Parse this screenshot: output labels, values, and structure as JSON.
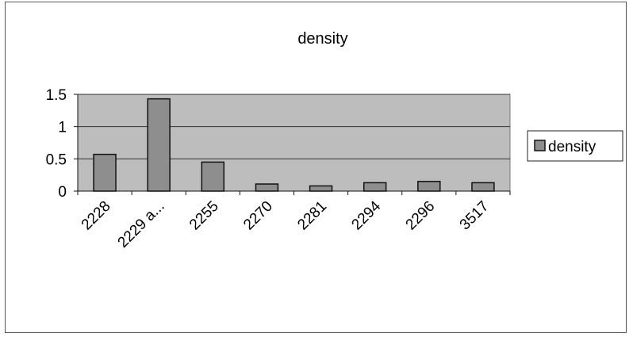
{
  "chart_data": {
    "type": "bar",
    "title": "density",
    "xlabel": "",
    "ylabel": "",
    "categories": [
      "2228",
      "2229 a...",
      "2255",
      "2270",
      "2281",
      "2294",
      "2296",
      "3517"
    ],
    "series": [
      {
        "name": "density",
        "values": [
          0.57,
          1.43,
          0.45,
          0.11,
          0.08,
          0.13,
          0.15,
          0.13
        ]
      }
    ],
    "ylim": [
      0,
      1.5
    ],
    "yticks": [
      "0",
      "0.5",
      "1",
      "1.5"
    ],
    "grid": true,
    "legend": "right",
    "colors": {
      "plot_bg": "#bdbdbd",
      "bar": "#8e8e8e",
      "bar_stroke": "#111111",
      "grid": "#333333"
    }
  }
}
